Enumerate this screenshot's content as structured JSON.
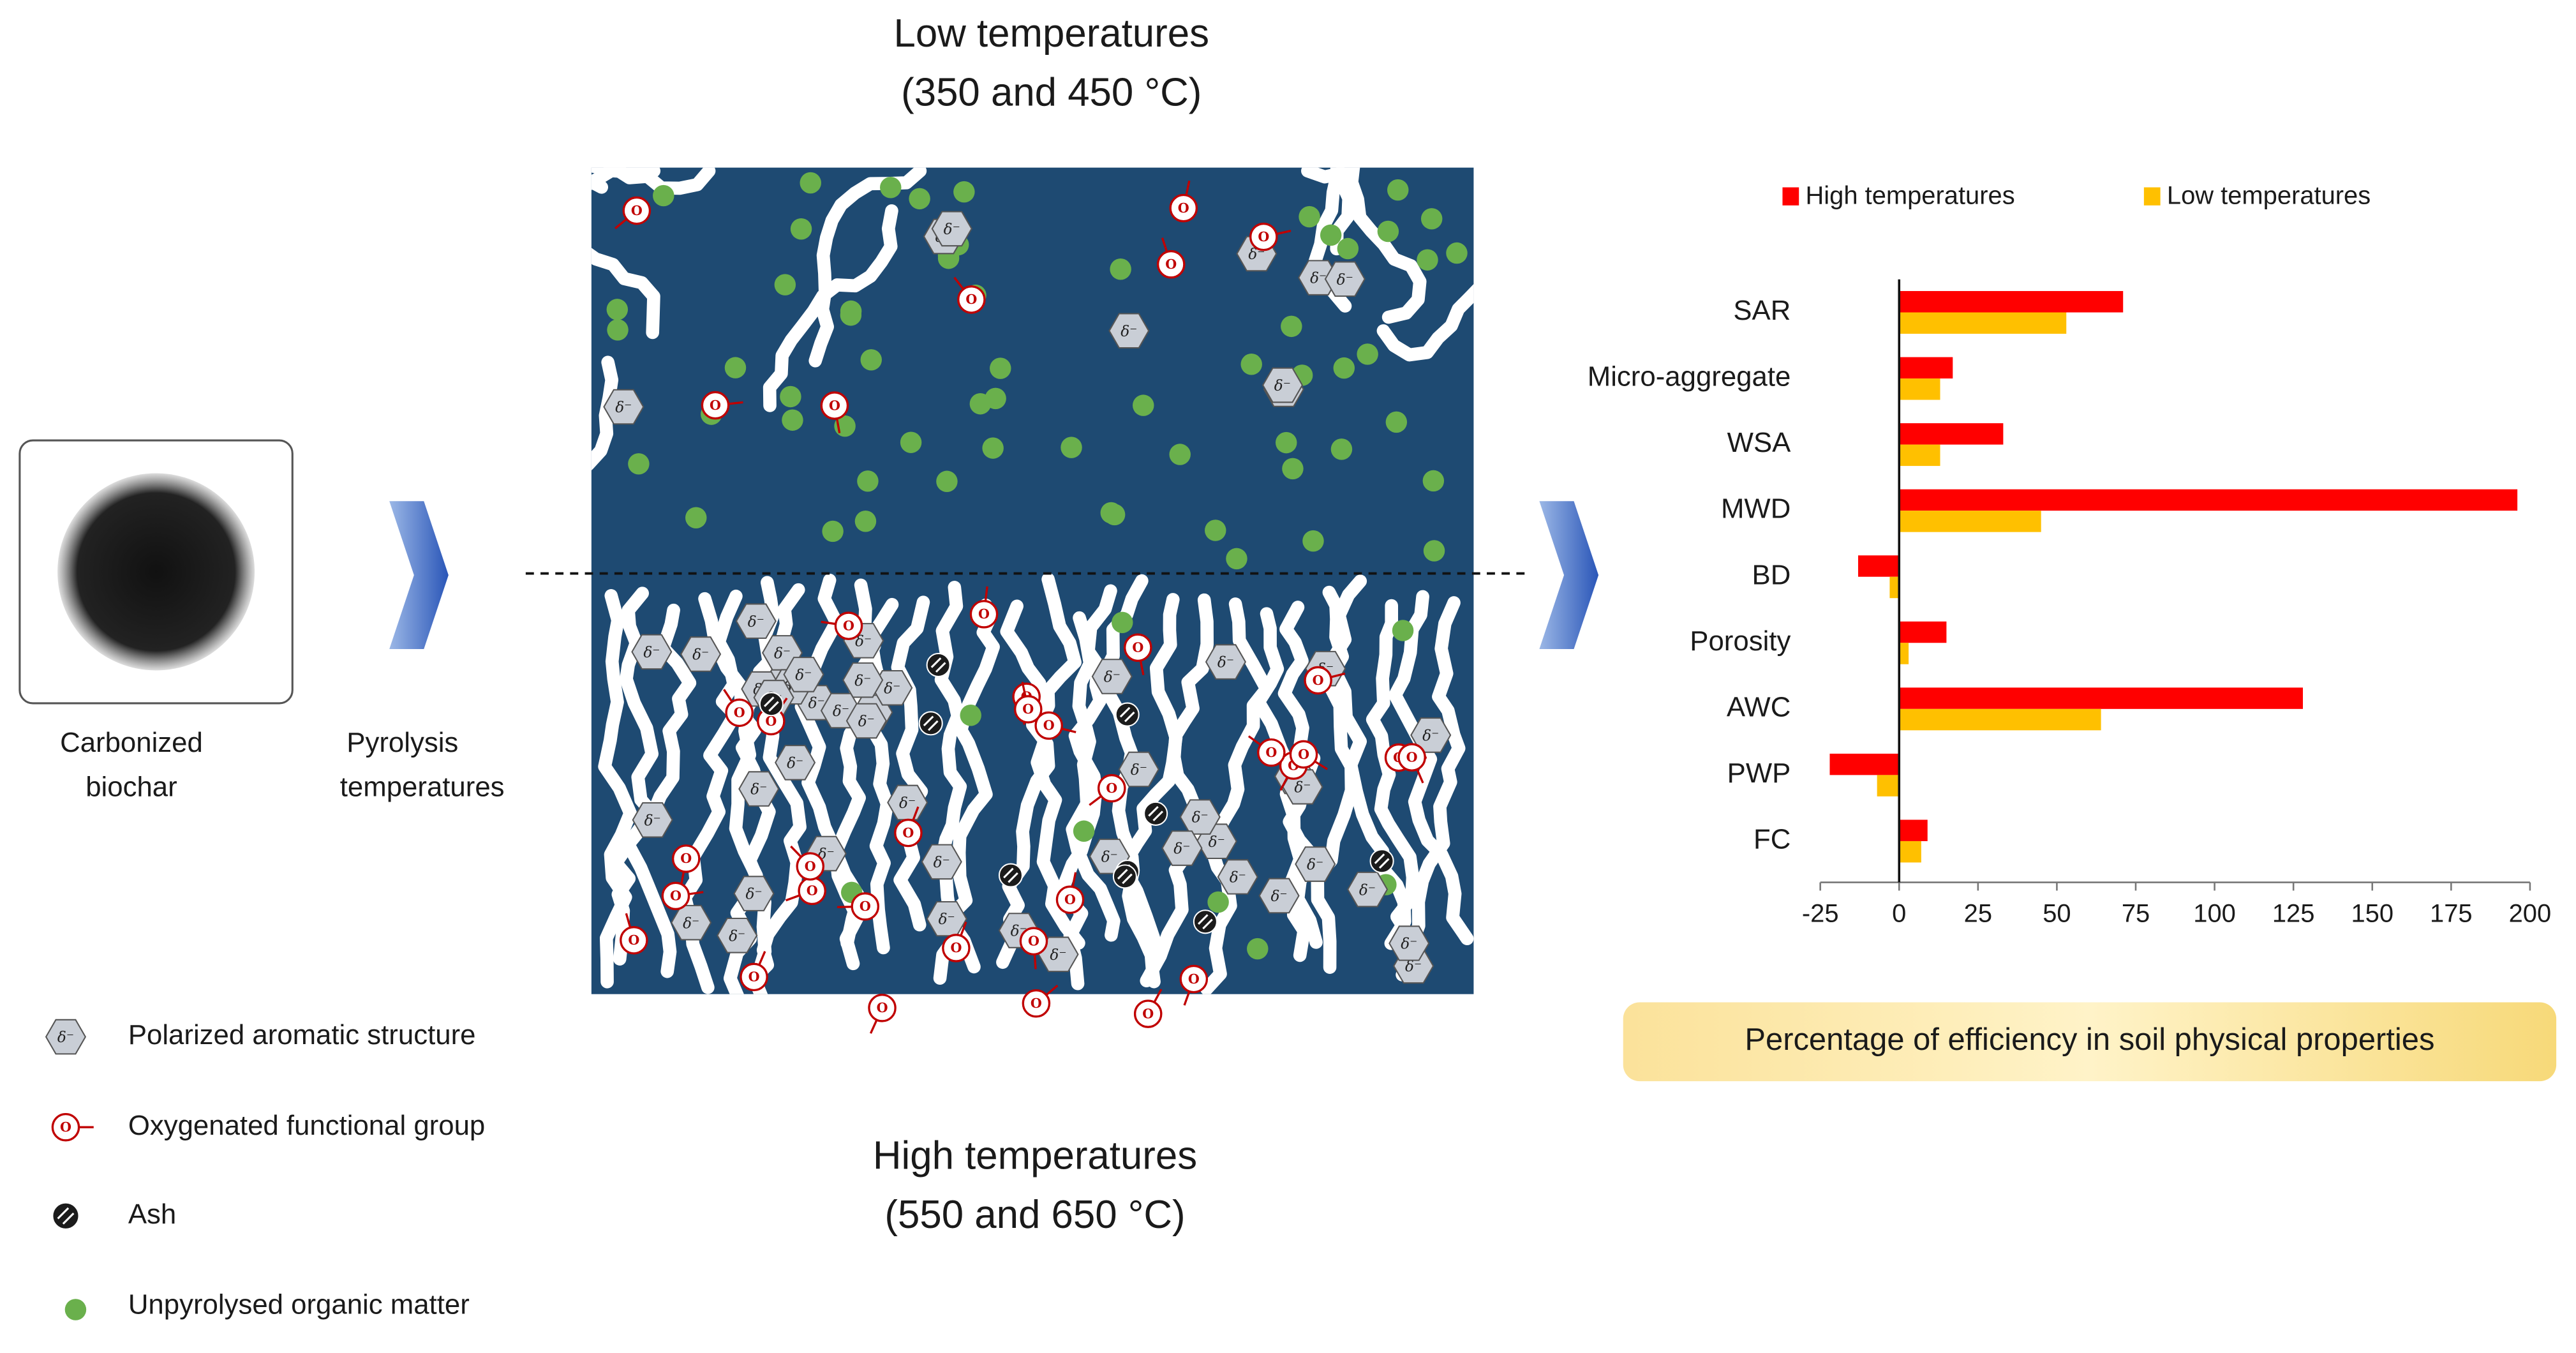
{
  "chart_data": {
    "type": "bar",
    "orientation": "horizontal",
    "categories": [
      "SAR",
      "Micro-aggregate",
      "WSA",
      "MWD",
      "BD",
      "Porosity",
      "AWC",
      "PWP",
      "FC"
    ],
    "series": [
      {
        "name": "High temperatures",
        "color": "#ff0000",
        "values": [
          71,
          17,
          33,
          196,
          -13,
          15,
          128,
          -22,
          9
        ]
      },
      {
        "name": "Low temperatures",
        "color": "#ffc000",
        "values": [
          53,
          13,
          13,
          45,
          -3,
          3,
          64,
          -7,
          7
        ]
      }
    ],
    "xlim": [
      -25,
      200
    ],
    "xticks": [
      -25,
      0,
      25,
      50,
      75,
      100,
      125,
      150,
      175,
      200
    ],
    "xlabel": "Percentage of efficiency in soil physical properties",
    "grid": false,
    "legend": "top"
  },
  "diagram": {
    "low_label": [
      "Low temperatures",
      "(350 and 450 °C)"
    ],
    "high_label": [
      "High temperatures",
      "(550 and 650 °C)"
    ],
    "biochar_label": [
      "Carbonized",
      "biochar"
    ],
    "process_label": [
      "Pyrolysis",
      "temperatures"
    ],
    "legend": [
      "Polarized aromatic structure",
      "Oxygenated functional group",
      "Ash",
      "Unpyrolysed organic matter"
    ],
    "symbols": {
      "aromatic": "δ⁻",
      "oxygen": "O"
    }
  }
}
